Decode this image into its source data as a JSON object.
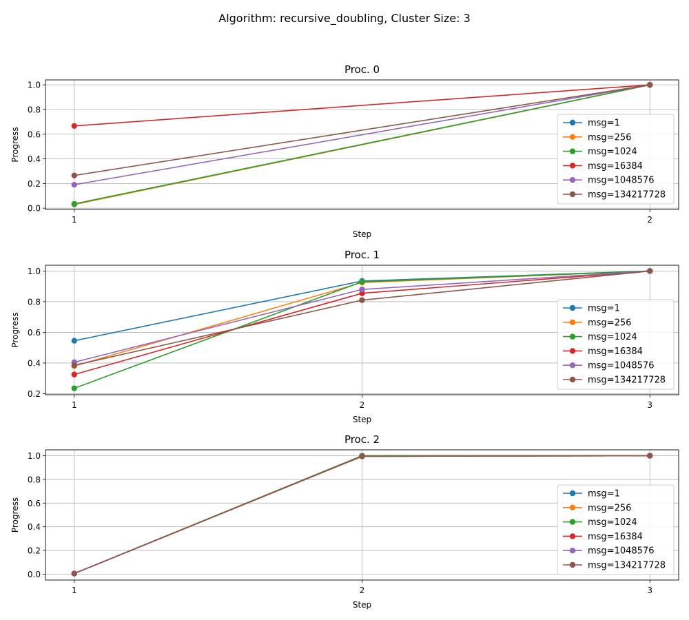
{
  "figure": {
    "suptitle": "Algorithm: recursive_doubling, Cluster Size: 3"
  },
  "colors": {
    "msg=1": "#1f77b4",
    "msg=256": "#ff7f0e",
    "msg=1024": "#2ca02c",
    "msg=16384": "#d62728",
    "msg=1048576": "#9467bd",
    "msg=134217728": "#8c564b",
    "grid": "#b0b0b0"
  },
  "chart_data": [
    {
      "type": "line",
      "title": "Proc. 0",
      "xlabel": "Step",
      "ylabel": "Progress",
      "x": [
        1,
        2
      ],
      "xticks": [
        "1",
        "2"
      ],
      "xlim": [
        0.95,
        2.05
      ],
      "ylim": [
        -0.01,
        1.04
      ],
      "yticks": [
        "0.0",
        "0.2",
        "0.4",
        "0.6",
        "0.8",
        "1.0"
      ],
      "grid": true,
      "legend_position": "lower right",
      "series": [
        {
          "name": "msg=1",
          "values": [
            0.03,
            1.0
          ]
        },
        {
          "name": "msg=256",
          "values": [
            0.03,
            1.0
          ]
        },
        {
          "name": "msg=1024",
          "values": [
            0.035,
            1.0
          ]
        },
        {
          "name": "msg=16384",
          "values": [
            0.667,
            1.0
          ]
        },
        {
          "name": "msg=1048576",
          "values": [
            0.19,
            1.0
          ]
        },
        {
          "name": "msg=134217728",
          "values": [
            0.265,
            1.0
          ]
        }
      ]
    },
    {
      "type": "line",
      "title": "Proc. 1",
      "xlabel": "Step",
      "ylabel": "Progress",
      "x": [
        1,
        2,
        3
      ],
      "xticks": [
        "1",
        "2",
        "3"
      ],
      "xlim": [
        0.9,
        3.1
      ],
      "ylim": [
        0.193,
        1.038
      ],
      "yticks": [
        "0.2",
        "0.4",
        "0.6",
        "0.8",
        "1.0"
      ],
      "grid": true,
      "legend_position": "lower right",
      "series": [
        {
          "name": "msg=1",
          "values": [
            0.545,
            0.935,
            1.0
          ]
        },
        {
          "name": "msg=256",
          "values": [
            0.38,
            0.925,
            1.0
          ]
        },
        {
          "name": "msg=1024",
          "values": [
            0.235,
            0.93,
            1.0
          ]
        },
        {
          "name": "msg=16384",
          "values": [
            0.325,
            0.855,
            1.0
          ]
        },
        {
          "name": "msg=1048576",
          "values": [
            0.405,
            0.88,
            1.0
          ]
        },
        {
          "name": "msg=134217728",
          "values": [
            0.385,
            0.81,
            1.0
          ]
        }
      ]
    },
    {
      "type": "line",
      "title": "Proc. 2",
      "xlabel": "Step",
      "ylabel": "Progress",
      "x": [
        1,
        2,
        3
      ],
      "xticks": [
        "1",
        "2",
        "3"
      ],
      "xlim": [
        0.9,
        3.1
      ],
      "ylim": [
        -0.05,
        1.05
      ],
      "yticks": [
        "0.0",
        "0.2",
        "0.4",
        "0.6",
        "0.8",
        "1.0"
      ],
      "grid": true,
      "legend_position": "lower right",
      "series": [
        {
          "name": "msg=1",
          "values": [
            0.005,
            1.0,
            1.0
          ]
        },
        {
          "name": "msg=256",
          "values": [
            0.005,
            1.0,
            1.0
          ]
        },
        {
          "name": "msg=1024",
          "values": [
            0.005,
            1.0,
            1.0
          ]
        },
        {
          "name": "msg=16384",
          "values": [
            0.005,
            0.995,
            1.0
          ]
        },
        {
          "name": "msg=1048576",
          "values": [
            0.005,
            0.995,
            1.0
          ]
        },
        {
          "name": "msg=134217728",
          "values": [
            0.005,
            0.995,
            1.0
          ]
        }
      ]
    }
  ]
}
